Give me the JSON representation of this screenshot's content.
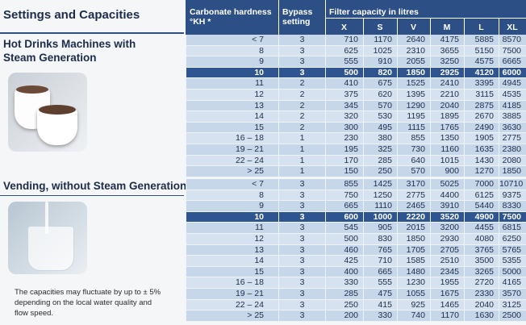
{
  "header": {
    "title": "Settings and Capacities"
  },
  "table": {
    "hardness": [
      "Carbonate hardness",
      "°KH *"
    ],
    "bypass": [
      "Bypass",
      "setting"
    ],
    "capacity": "Filter capacity in litres",
    "sizes": [
      "X",
      "S",
      "V",
      "M",
      "L",
      "XL"
    ]
  },
  "sections": [
    {
      "heading": [
        "Hot Drinks Machines with",
        "Steam Generation"
      ],
      "rows": [
        [
          "< 7",
          3,
          710,
          1170,
          2640,
          4175,
          5885,
          8570
        ],
        [
          "8",
          3,
          625,
          1025,
          2310,
          3655,
          5150,
          7500
        ],
        [
          "9",
          3,
          555,
          910,
          2055,
          3250,
          4575,
          6665
        ],
        [
          "10",
          3,
          500,
          820,
          1850,
          2925,
          4120,
          6000
        ],
        [
          "11",
          2,
          410,
          675,
          1525,
          2410,
          3395,
          4945
        ],
        [
          "12",
          2,
          375,
          620,
          1395,
          2210,
          3115,
          4535
        ],
        [
          "13",
          2,
          345,
          570,
          1290,
          2040,
          2875,
          4185
        ],
        [
          "14",
          2,
          320,
          530,
          1195,
          1895,
          2670,
          3885
        ],
        [
          "15",
          2,
          300,
          495,
          1115,
          1765,
          2490,
          3630
        ],
        [
          "16 – 18",
          1,
          230,
          380,
          855,
          1350,
          1905,
          2775
        ],
        [
          "19 – 21",
          1,
          195,
          325,
          730,
          1160,
          1635,
          2380
        ],
        [
          "22 – 24",
          1,
          170,
          285,
          640,
          1015,
          1430,
          2080
        ],
        [
          "> 25",
          1,
          150,
          250,
          570,
          900,
          1270,
          1850
        ]
      ]
    },
    {
      "heading": [
        "Vending, without Steam Generation"
      ],
      "rows": [
        [
          "< 7",
          3,
          855,
          1425,
          3170,
          5025,
          7000,
          10710
        ],
        [
          "8",
          3,
          750,
          1250,
          2775,
          4400,
          6125,
          9375
        ],
        [
          "9",
          3,
          665,
          1110,
          2465,
          3910,
          5440,
          8330
        ],
        [
          "10",
          3,
          600,
          1000,
          2220,
          3520,
          4900,
          7500
        ],
        [
          "11",
          3,
          545,
          905,
          2015,
          3200,
          4455,
          6815
        ],
        [
          "12",
          3,
          500,
          830,
          1850,
          2930,
          4080,
          6250
        ],
        [
          "13",
          3,
          460,
          765,
          1705,
          2705,
          3765,
          5765
        ],
        [
          "14",
          3,
          425,
          710,
          1585,
          2510,
          3500,
          5355
        ],
        [
          "15",
          3,
          400,
          665,
          1480,
          2345,
          3265,
          5000
        ],
        [
          "16 – 18",
          3,
          330,
          555,
          1230,
          1955,
          2720,
          4165
        ],
        [
          "19 – 21",
          3,
          285,
          475,
          1055,
          1675,
          2330,
          3570
        ],
        [
          "22 – 24",
          3,
          250,
          415,
          925,
          1465,
          2040,
          3125
        ],
        [
          "> 25",
          3,
          200,
          330,
          740,
          1170,
          1630,
          2500
        ]
      ]
    }
  ],
  "note": [
    "The capacities may fluctuate by up to ± 5%",
    "depending on the local water quality and",
    "flow speed."
  ]
}
